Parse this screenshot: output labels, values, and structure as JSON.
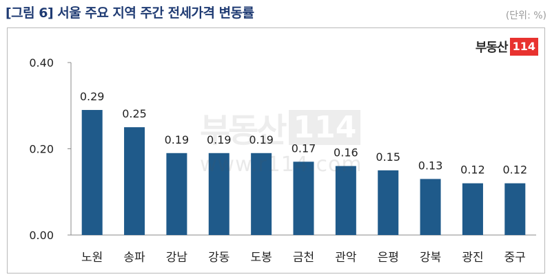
{
  "title": "[그림 6] 서울 주요 지역 주간 전세가격 변동률",
  "unit": "(단위: %)",
  "logo": {
    "text": "부동산",
    "badge": "114"
  },
  "watermark": {
    "text": "부동산",
    "badge": "114",
    "url": "www.r114.com"
  },
  "colors": {
    "bar": "#1f5a8a",
    "title": "#1f3b73"
  },
  "chart_data": {
    "type": "bar",
    "categories": [
      "노원",
      "송파",
      "강남",
      "강동",
      "도봉",
      "금천",
      "관악",
      "은평",
      "강북",
      "광진",
      "중구"
    ],
    "values": [
      0.29,
      0.25,
      0.19,
      0.19,
      0.19,
      0.17,
      0.16,
      0.15,
      0.13,
      0.12,
      0.12
    ],
    "value_labels": [
      "0.29",
      "0.25",
      "0.19",
      "0.19",
      "0.19",
      "0.17",
      "0.16",
      "0.15",
      "0.13",
      "0.12",
      "0.12"
    ],
    "ylim": [
      0,
      0.4
    ],
    "yticks": [
      0,
      0.2,
      0.4
    ],
    "ytick_labels": [
      "0.00",
      "0.20",
      "0.40"
    ],
    "grid": false,
    "legend": "none"
  }
}
